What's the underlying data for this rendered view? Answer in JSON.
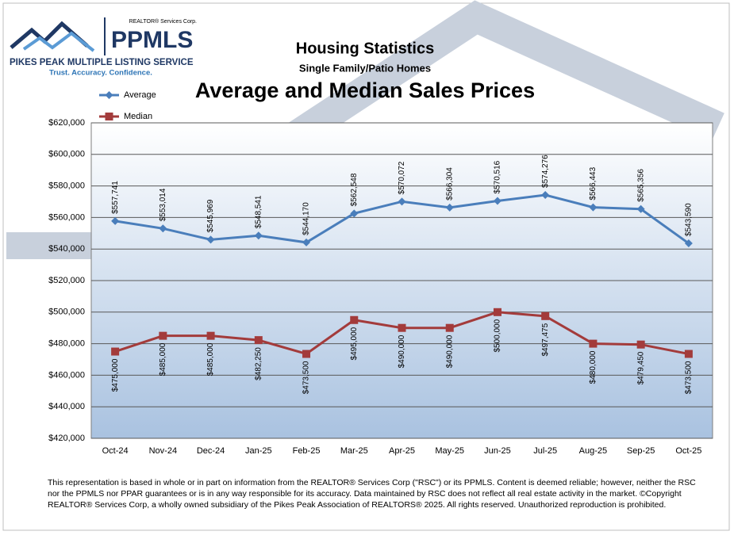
{
  "header": {
    "corp": "REALTOR® Services Corp.",
    "brand": "PPMLS",
    "service": "PIKES PEAK MULTIPLE LISTING SERVICE",
    "tagline": "Trust. Accuracy. Confidence."
  },
  "chart_data": {
    "type": "line",
    "title": "Housing Statistics",
    "subtitle": "Single Family/Patio Homes",
    "heading": "Average and Median Sales Prices",
    "categories": [
      "Oct-24",
      "Nov-24",
      "Dec-24",
      "Jan-25",
      "Feb-25",
      "Mar-25",
      "Apr-25",
      "May-25",
      "Jun-25",
      "Jul-25",
      "Aug-25",
      "Sep-25",
      "Oct-25"
    ],
    "series": [
      {
        "name": "Average",
        "color": "#4a7ebb",
        "marker": "diamond",
        "values": [
          557741,
          553014,
          545969,
          548541,
          544170,
          562548,
          570072,
          566304,
          570516,
          574276,
          566443,
          565356,
          543590
        ],
        "value_labels": [
          "$557,741",
          "$553,014",
          "$545,969",
          "$548,541",
          "$544,170",
          "$562,548",
          "$570,072",
          "$566,304",
          "$570,516",
          "$574,276",
          "$566,443",
          "$565,356",
          "$543,590"
        ]
      },
      {
        "name": "Median",
        "color": "#a33b3b",
        "marker": "square",
        "values": [
          475000,
          485000,
          485000,
          482250,
          473500,
          495000,
          490000,
          490000,
          500000,
          497475,
          480000,
          479450,
          473500
        ],
        "value_labels": [
          "$475,000",
          "$485,000",
          "$485,000",
          "$482,250",
          "$473,500",
          "$495,000",
          "$490,000",
          "$490,000",
          "$500,000",
          "$497,475",
          "$480,000",
          "$479,450",
          "$473,500"
        ]
      }
    ],
    "ylim": [
      420000,
      620000
    ],
    "yticks": [
      {
        "value": 420000,
        "label": "$420,000"
      },
      {
        "value": 440000,
        "label": "$440,000"
      },
      {
        "value": 460000,
        "label": "$460,000"
      },
      {
        "value": 480000,
        "label": "$480,000"
      },
      {
        "value": 500000,
        "label": "$500,000"
      },
      {
        "value": 520000,
        "label": "$520,000"
      },
      {
        "value": 540000,
        "label": "$540,000"
      },
      {
        "value": 560000,
        "label": "$560,000"
      },
      {
        "value": 580000,
        "label": "$580,000"
      },
      {
        "value": 600000,
        "label": "$600,000"
      },
      {
        "value": 620000,
        "label": "$620,000"
      }
    ],
    "grid": true
  },
  "footnote": "This representation is based in whole or in part on information from the REALTOR® Services Corp (\"RSC\") or its PPMLS. Content is deemed reliable; however, neither the RSC nor the PPMLS nor PPAR guarantees or is in any way responsible for its accuracy. Data maintained by RSC does not reflect all real estate activity in the market. ©Copyright REALTOR® Services Corp, a wholly owned subsidiary of the Pikes Peak Association of REALTORS® 2025. All rights reserved. Unauthorized reproduction is prohibited."
}
